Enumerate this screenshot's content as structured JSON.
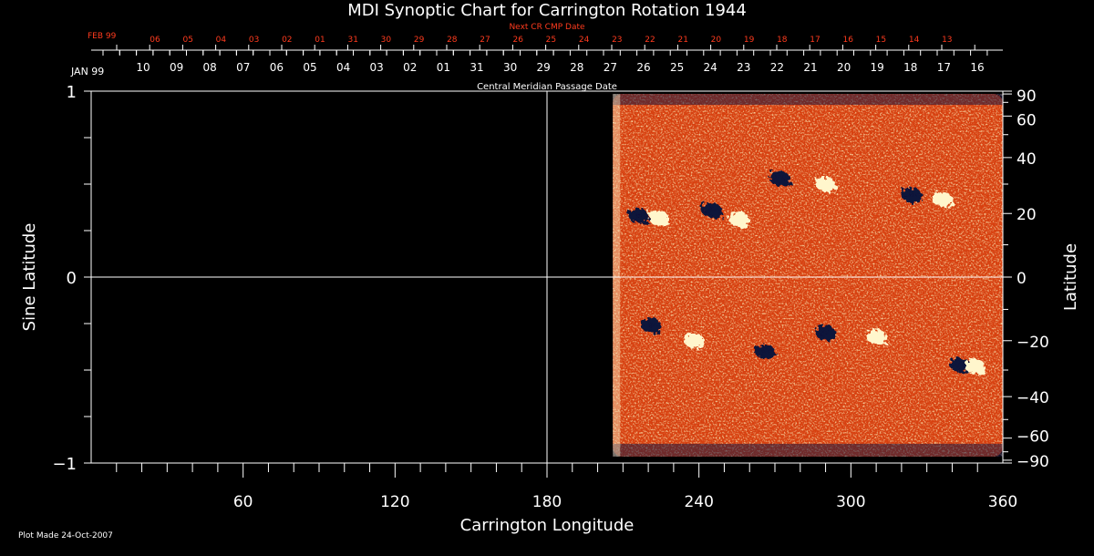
{
  "chart_data": {
    "type": "heatmap",
    "title": "MDI Synoptic Chart for Carrington Rotation 1944",
    "xlabel": "Carrington Longitude",
    "ylabel_left": "Sine Latitude",
    "ylabel_right": "Latitude",
    "xlim": [
      0,
      360
    ],
    "ylim": [
      -1,
      1
    ],
    "x_ticks": [
      60,
      120,
      180,
      240,
      300,
      360
    ],
    "y_ticks_left": [
      "1",
      "0",
      "−1"
    ],
    "y_ticks_right": [
      "90",
      "60",
      "40",
      "20",
      "0",
      "−20",
      "−40",
      "−60",
      "−90"
    ],
    "right_tick_values": [
      90,
      60,
      40,
      20,
      0,
      -20,
      -40,
      -60,
      -90
    ],
    "top_axis_label": "Next CR CMP Date",
    "top_axis_month": "FEB 99",
    "top_axis_ticks": [
      "06",
      "05",
      "04",
      "03",
      "02",
      "01",
      "31",
      "30",
      "29",
      "28",
      "27",
      "26",
      "25",
      "24",
      "23",
      "22",
      "21",
      "20",
      "19",
      "18",
      "17",
      "16",
      "15",
      "14",
      "13"
    ],
    "second_axis_label": "Central Meridian Passage Date",
    "second_axis_month": "JAN 99",
    "second_axis_ticks": [
      "10",
      "09",
      "08",
      "07",
      "06",
      "05",
      "04",
      "03",
      "02",
      "01",
      "31",
      "30",
      "29",
      "28",
      "27",
      "26",
      "25",
      "24",
      "23",
      "22",
      "21",
      "20",
      "19",
      "18",
      "17",
      "16"
    ],
    "data_coverage_lon": [
      206,
      360
    ],
    "color_background": "#d8400f",
    "color_positive": "#fff6cc",
    "color_negative": "#10123a",
    "active_regions": [
      {
        "lon": 216,
        "sinlat": 0.33,
        "pol": "neg"
      },
      {
        "lon": 224,
        "sinlat": 0.32,
        "pol": "pos"
      },
      {
        "lon": 245,
        "sinlat": 0.36,
        "pol": "neg"
      },
      {
        "lon": 256,
        "sinlat": 0.31,
        "pol": "pos"
      },
      {
        "lon": 272,
        "sinlat": 0.53,
        "pol": "neg"
      },
      {
        "lon": 290,
        "sinlat": 0.5,
        "pol": "pos"
      },
      {
        "lon": 324,
        "sinlat": 0.44,
        "pol": "neg"
      },
      {
        "lon": 336,
        "sinlat": 0.42,
        "pol": "pos"
      },
      {
        "lon": 221,
        "sinlat": -0.26,
        "pol": "neg"
      },
      {
        "lon": 238,
        "sinlat": -0.34,
        "pol": "pos"
      },
      {
        "lon": 266,
        "sinlat": -0.4,
        "pol": "neg"
      },
      {
        "lon": 290,
        "sinlat": -0.3,
        "pol": "neg"
      },
      {
        "lon": 310,
        "sinlat": -0.32,
        "pol": "pos"
      },
      {
        "lon": 343,
        "sinlat": -0.47,
        "pol": "neg"
      },
      {
        "lon": 349,
        "sinlat": -0.48,
        "pol": "pos"
      }
    ]
  },
  "footer": "Plot Made 24-Oct-2007"
}
